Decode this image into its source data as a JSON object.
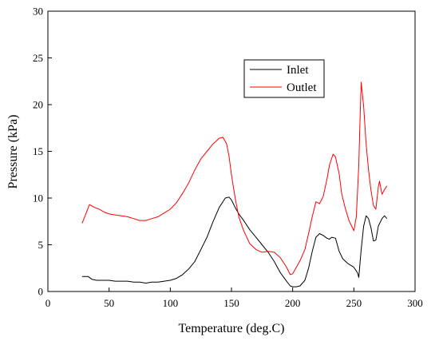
{
  "chart_data": {
    "type": "line",
    "title": "",
    "xlabel": "Temperature (deg.C)",
    "ylabel": "Pressure (kPa)",
    "xlim": [
      0,
      300
    ],
    "ylim": [
      0,
      30
    ],
    "xticks": [
      0,
      50,
      100,
      150,
      200,
      250,
      300
    ],
    "yticks": [
      0,
      5,
      10,
      15,
      20,
      25,
      30
    ],
    "grid": false,
    "legend_position": "upper-center-right",
    "series": [
      {
        "name": "Inlet",
        "color": "#000000",
        "x": [
          28,
          33,
          36,
          40,
          45,
          50,
          55,
          60,
          65,
          70,
          75,
          80,
          85,
          90,
          95,
          100,
          105,
          110,
          115,
          120,
          125,
          130,
          135,
          140,
          145,
          148,
          150,
          153,
          156,
          160,
          165,
          170,
          175,
          180,
          185,
          190,
          195,
          198,
          200,
          203,
          206,
          210,
          213,
          216,
          219,
          222,
          225,
          228,
          230,
          232,
          235,
          238,
          241,
          245,
          250,
          253,
          254,
          256,
          258,
          260,
          262,
          264,
          266,
          268,
          270,
          273,
          275,
          277
        ],
        "y": [
          1.6,
          1.6,
          1.3,
          1.2,
          1.2,
          1.2,
          1.1,
          1.1,
          1.1,
          1.0,
          1.0,
          0.9,
          1.0,
          1.0,
          1.1,
          1.2,
          1.4,
          1.8,
          2.4,
          3.2,
          4.5,
          5.8,
          7.5,
          9.0,
          10.0,
          10.1,
          9.8,
          9.0,
          8.3,
          7.6,
          6.6,
          5.8,
          5.0,
          4.2,
          3.2,
          2.0,
          1.1,
          0.6,
          0.5,
          0.5,
          0.6,
          1.2,
          2.5,
          4.3,
          5.8,
          6.2,
          6.0,
          5.7,
          5.6,
          5.8,
          5.7,
          4.3,
          3.5,
          3.0,
          2.6,
          2.0,
          1.5,
          4.5,
          7.0,
          8.1,
          7.8,
          6.8,
          5.4,
          5.5,
          7.0,
          7.8,
          8.1,
          7.8
        ]
      },
      {
        "name": "Outlet",
        "color": "#ff0000",
        "x": [
          28,
          31,
          34,
          38,
          42,
          46,
          50,
          55,
          60,
          65,
          70,
          75,
          80,
          85,
          90,
          95,
          100,
          105,
          110,
          115,
          120,
          125,
          130,
          135,
          140,
          143,
          146,
          148,
          150,
          153,
          156,
          160,
          165,
          170,
          175,
          180,
          185,
          190,
          195,
          198,
          200,
          203,
          206,
          210,
          213,
          216,
          219,
          222,
          225,
          228,
          230,
          233,
          235,
          238,
          240,
          243,
          246,
          250,
          252,
          254,
          255,
          256,
          258,
          260,
          262,
          264,
          266,
          268,
          270,
          271,
          273,
          275,
          277
        ],
        "y": [
          7.3,
          8.3,
          9.3,
          9.0,
          8.8,
          8.5,
          8.3,
          8.2,
          8.1,
          8.0,
          7.8,
          7.6,
          7.6,
          7.8,
          8.0,
          8.4,
          8.8,
          9.5,
          10.5,
          11.6,
          13.0,
          14.2,
          15.0,
          15.8,
          16.4,
          16.5,
          15.8,
          14.5,
          12.5,
          10.0,
          8.0,
          6.5,
          5.1,
          4.5,
          4.2,
          4.3,
          4.2,
          3.6,
          2.6,
          1.8,
          1.9,
          2.6,
          3.3,
          4.5,
          6.2,
          8.0,
          9.6,
          9.4,
          10.2,
          12.0,
          13.5,
          14.7,
          14.4,
          12.6,
          10.5,
          8.9,
          7.6,
          6.5,
          8.0,
          13.5,
          18.2,
          22.4,
          19.8,
          15.8,
          13.0,
          10.8,
          9.2,
          8.8,
          11.2,
          11.8,
          10.4,
          10.9,
          11.3
        ]
      }
    ]
  }
}
